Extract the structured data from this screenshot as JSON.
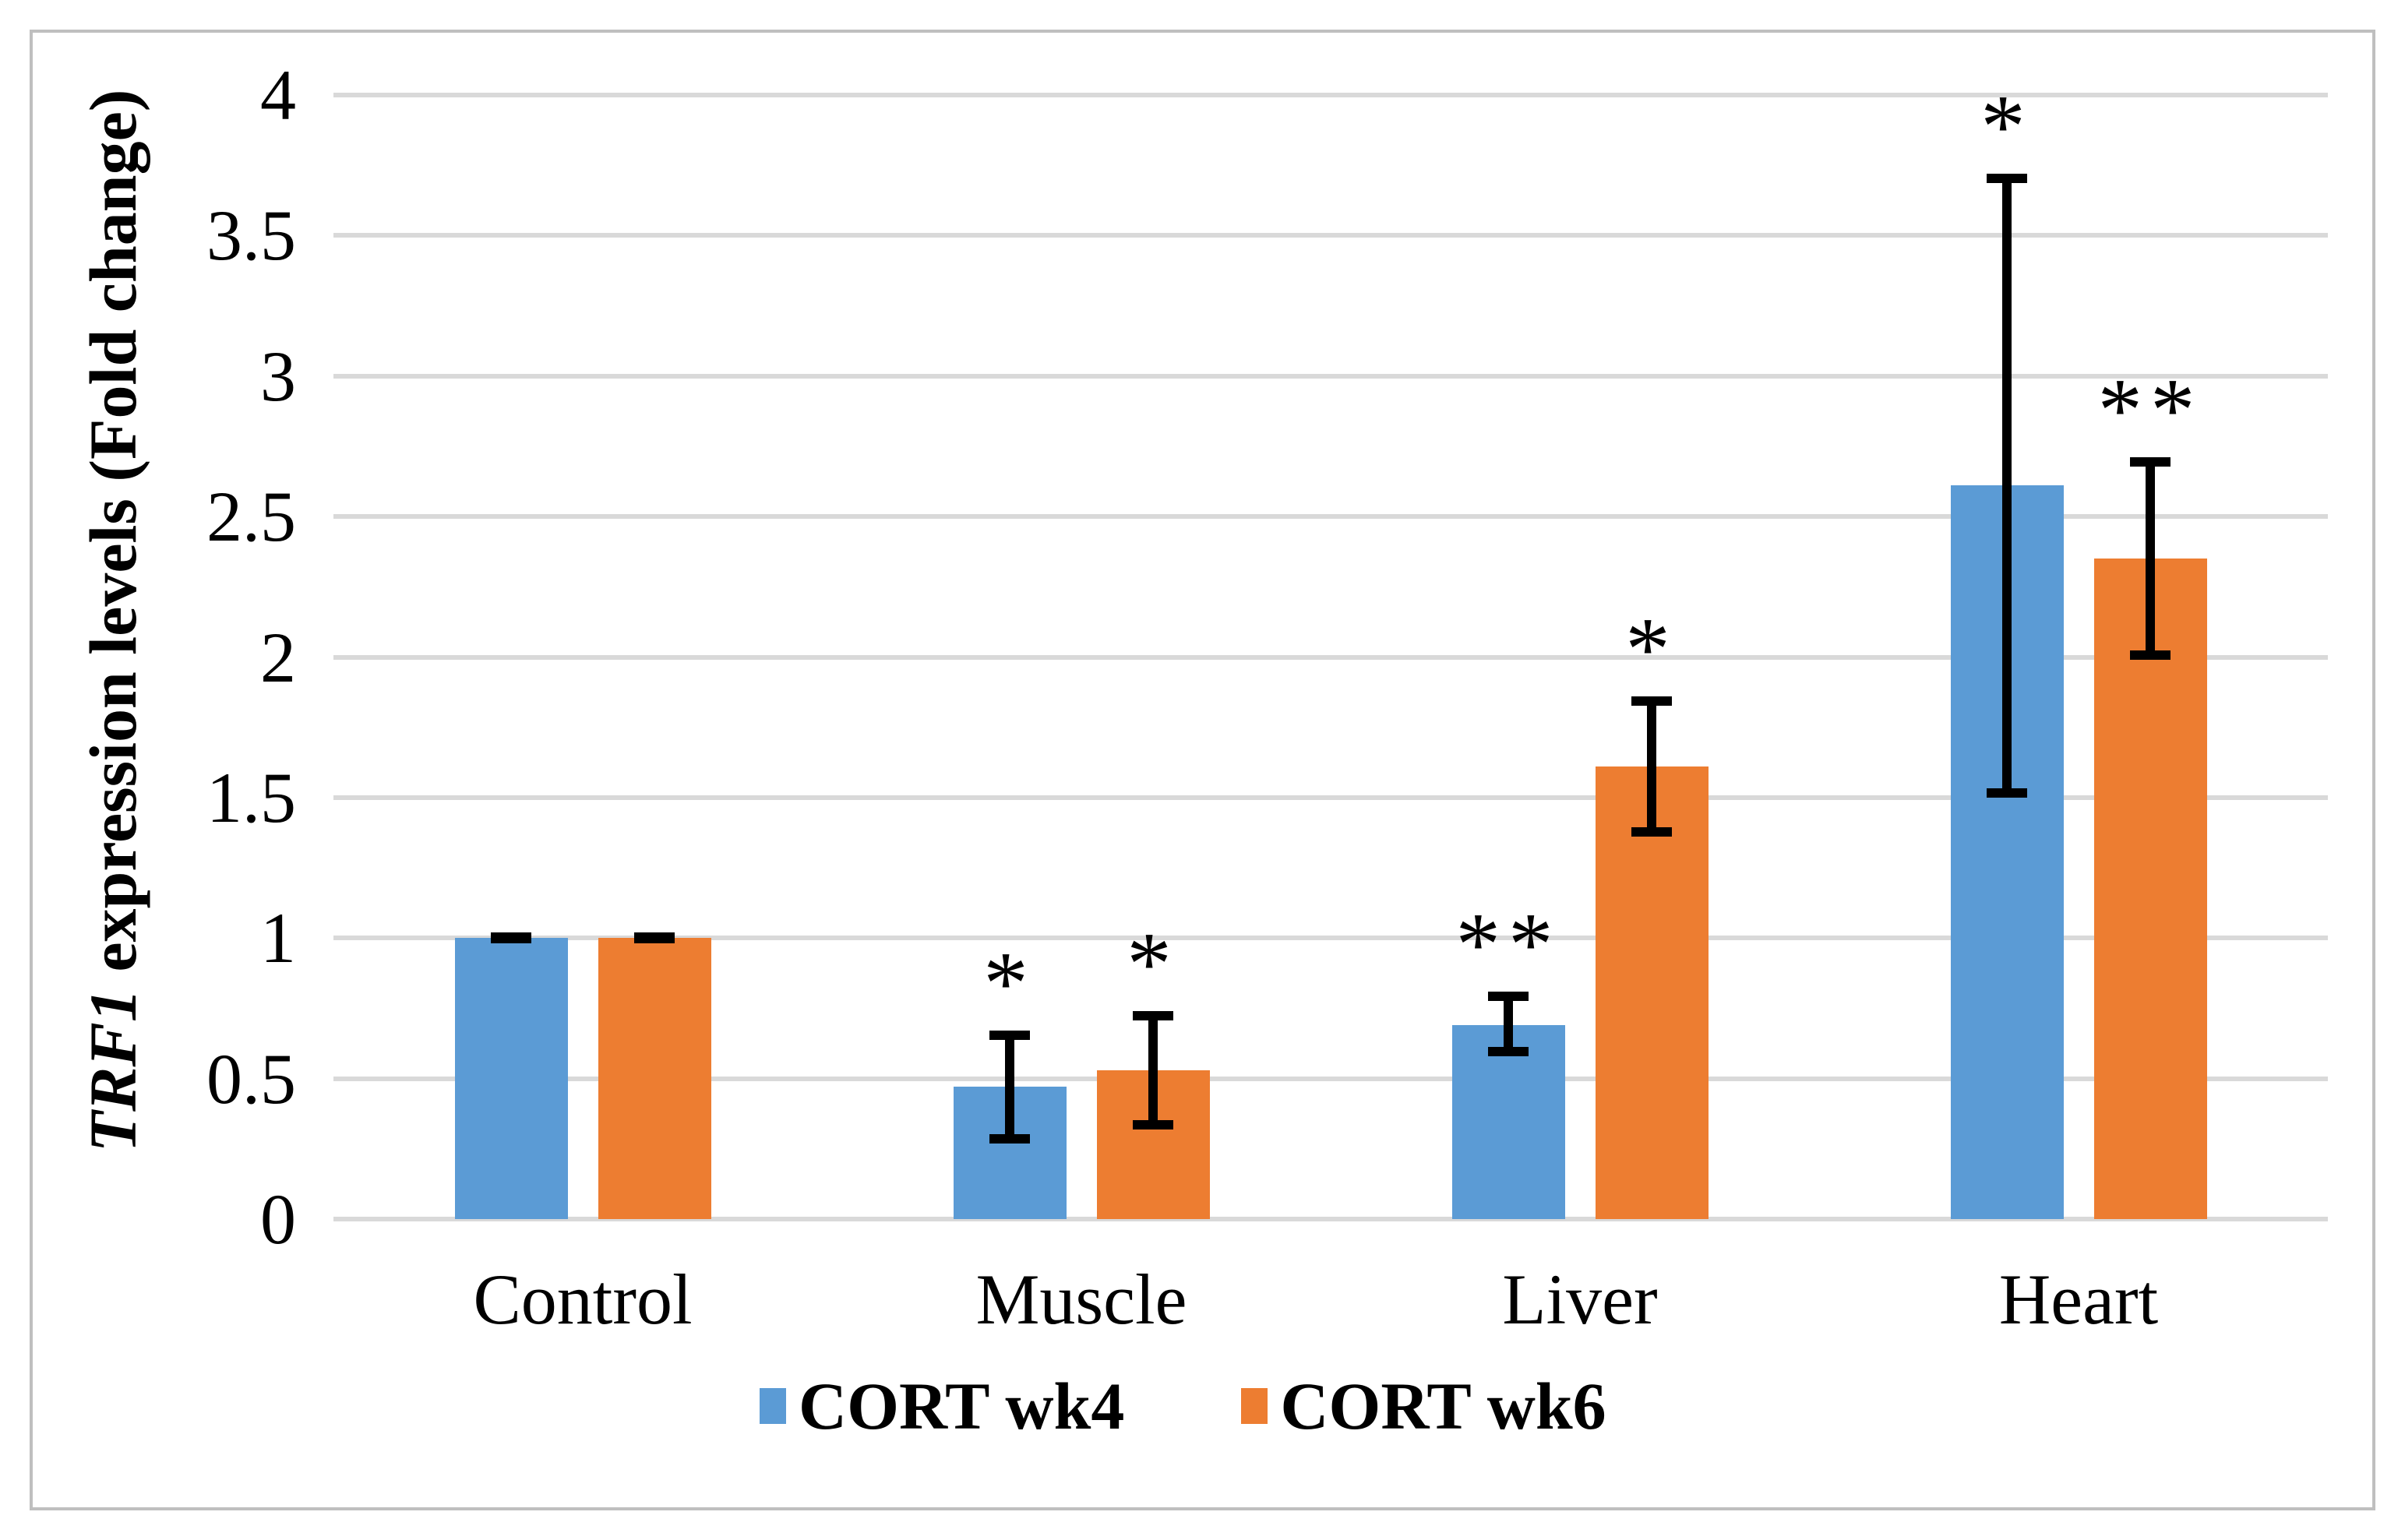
{
  "figure": {
    "background": "#FFFFFF",
    "border_color": "#BFBFBF",
    "gridline_color": "#D9D9D9"
  },
  "y_axis": {
    "title_gene": "TRF1",
    "title_rest": " expression levels (Fold change)",
    "ticks": [
      "0",
      "0.5",
      "1",
      "1.5",
      "2",
      "2.5",
      "3",
      "3.5",
      "4"
    ],
    "min": 0,
    "max": 4,
    "step": 0.5
  },
  "x_axis": {
    "categories": [
      "Control",
      "Muscle",
      "Liver",
      "Heart"
    ]
  },
  "legend": {
    "items": [
      {
        "label": "CORT wk4",
        "color": "#5B9BD5"
      },
      {
        "label": "CORT wk6",
        "color": "#ED7D31"
      }
    ]
  },
  "chart_data": {
    "type": "bar",
    "title": "",
    "xlabel": "",
    "ylabel": "TRF1 expression levels (Fold change)",
    "ylim": [
      0,
      4
    ],
    "grid": "horizontal gridlines every 0.5, light gray",
    "legend_position": "bottom center",
    "categories": [
      "Control",
      "Muscle",
      "Liver",
      "Heart"
    ],
    "series": [
      {
        "name": "CORT wk4",
        "color": "#5B9BD5",
        "values": [
          1.0,
          0.47,
          0.69,
          2.61
        ],
        "error_plus": [
          0.02,
          0.2,
          0.12,
          1.11
        ],
        "error_minus": [
          0.02,
          0.2,
          0.11,
          1.11
        ],
        "significance": [
          "",
          "*",
          "**",
          "*"
        ]
      },
      {
        "name": "CORT wk6",
        "color": "#ED7D31",
        "values": [
          1.0,
          0.53,
          1.61,
          2.35
        ],
        "error_plus": [
          0.02,
          0.21,
          0.25,
          0.36
        ],
        "error_minus": [
          0.02,
          0.21,
          0.25,
          0.36
        ],
        "significance": [
          "",
          "*",
          "*",
          "**"
        ]
      }
    ]
  }
}
